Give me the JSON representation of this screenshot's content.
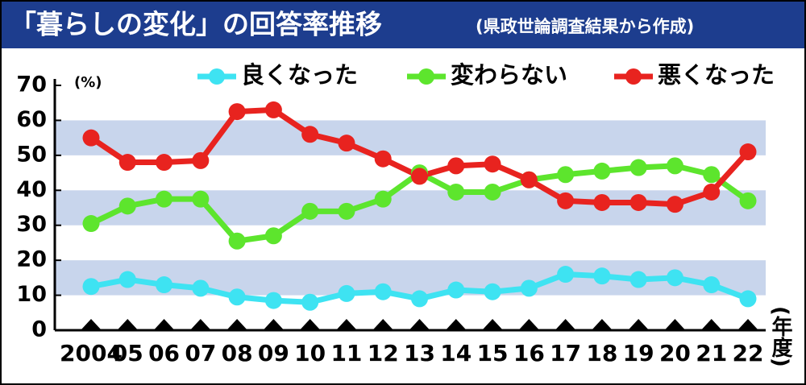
{
  "chart_data": {
    "type": "line",
    "title": "「暮らしの変化」の回答率推移",
    "subtitle": "(県政世論調査結果から作成)",
    "y_unit": "(%)",
    "x_unit": "(年度)",
    "categories": [
      "2004",
      "05",
      "06",
      "07",
      "08",
      "09",
      "10",
      "11",
      "12",
      "13",
      "14",
      "15",
      "16",
      "17",
      "18",
      "19",
      "20",
      "21",
      "22"
    ],
    "series": [
      {
        "name": "良くなった",
        "color": "#3ee3f2",
        "values": [
          12.5,
          14.5,
          13,
          12,
          9.5,
          8.5,
          8,
          10.5,
          11,
          9,
          11.5,
          11,
          12,
          16,
          15.5,
          14.5,
          15,
          13,
          9
        ]
      },
      {
        "name": "変わらない",
        "color": "#5de52d",
        "values": [
          30.5,
          35.5,
          37.5,
          37.5,
          25.5,
          27,
          34,
          34,
          37.5,
          45,
          39.5,
          39.5,
          43,
          44.5,
          45.5,
          46.5,
          47,
          44.5,
          37
        ]
      },
      {
        "name": "悪くなった",
        "color": "#e8231f",
        "values": [
          55,
          48,
          48,
          48.5,
          62.5,
          63,
          56,
          53.5,
          49,
          44,
          47,
          47.5,
          43,
          37,
          36.5,
          36.5,
          36,
          39.5,
          51
        ]
      }
    ],
    "ylim": [
      0,
      70
    ],
    "yticks": [
      0,
      10,
      20,
      30,
      40,
      50,
      60,
      70
    ],
    "bands": true,
    "band_color": "#c8d5ec"
  }
}
